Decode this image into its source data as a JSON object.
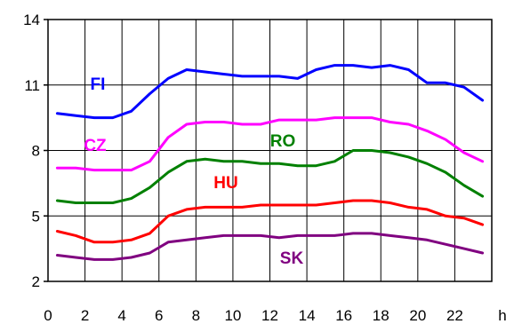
{
  "chart_data": {
    "type": "line",
    "title": "",
    "xlabel": "",
    "ylabel": "",
    "x_unit_label": "h",
    "xlim": [
      0,
      24
    ],
    "ylim": [
      2,
      14
    ],
    "x_ticks": [
      0,
      2,
      4,
      6,
      8,
      10,
      12,
      14,
      16,
      18,
      20,
      22
    ],
    "y_ticks": [
      2,
      5,
      8,
      11,
      14
    ],
    "grid": true,
    "legend": "inline labels",
    "x": [
      0.5,
      1.5,
      2.5,
      3.5,
      4.5,
      5.5,
      6.5,
      7.5,
      8.5,
      9.5,
      10.5,
      11.5,
      12.5,
      13.5,
      14.5,
      15.5,
      16.5,
      17.5,
      18.5,
      19.5,
      20.5,
      21.5,
      22.5,
      23.5
    ],
    "series": [
      {
        "name": "FI",
        "color": "#0000ff",
        "values": [
          9.7,
          9.6,
          9.5,
          9.5,
          9.8,
          10.6,
          11.3,
          11.7,
          11.6,
          11.5,
          11.4,
          11.4,
          11.4,
          11.3,
          11.7,
          11.9,
          11.9,
          11.8,
          11.9,
          11.7,
          11.1,
          11.1,
          10.9,
          10.3
        ]
      },
      {
        "name": "CZ",
        "color": "#ff00ff",
        "values": [
          7.2,
          7.2,
          7.1,
          7.1,
          7.1,
          7.5,
          8.6,
          9.2,
          9.3,
          9.3,
          9.2,
          9.2,
          9.4,
          9.4,
          9.4,
          9.5,
          9.5,
          9.5,
          9.3,
          9.2,
          8.9,
          8.5,
          7.9,
          7.5
        ]
      },
      {
        "name": "RO",
        "color": "#008000",
        "values": [
          5.7,
          5.6,
          5.6,
          5.6,
          5.8,
          6.3,
          7.0,
          7.5,
          7.6,
          7.5,
          7.5,
          7.4,
          7.4,
          7.3,
          7.3,
          7.5,
          8.0,
          8.0,
          7.9,
          7.7,
          7.4,
          7.0,
          6.4,
          5.9
        ]
      },
      {
        "name": "HU",
        "color": "#ff0000",
        "values": [
          4.3,
          4.1,
          3.8,
          3.8,
          3.9,
          4.2,
          5.0,
          5.3,
          5.4,
          5.4,
          5.4,
          5.5,
          5.5,
          5.5,
          5.5,
          5.6,
          5.7,
          5.7,
          5.6,
          5.4,
          5.3,
          5.0,
          4.9,
          4.6
        ]
      },
      {
        "name": "SK",
        "color": "#800080",
        "values": [
          3.2,
          3.1,
          3.0,
          3.0,
          3.1,
          3.3,
          3.8,
          3.9,
          4.0,
          4.1,
          4.1,
          4.1,
          4.0,
          4.1,
          4.1,
          4.1,
          4.2,
          4.2,
          4.1,
          4.0,
          3.9,
          3.7,
          3.5,
          3.3
        ]
      }
    ]
  }
}
